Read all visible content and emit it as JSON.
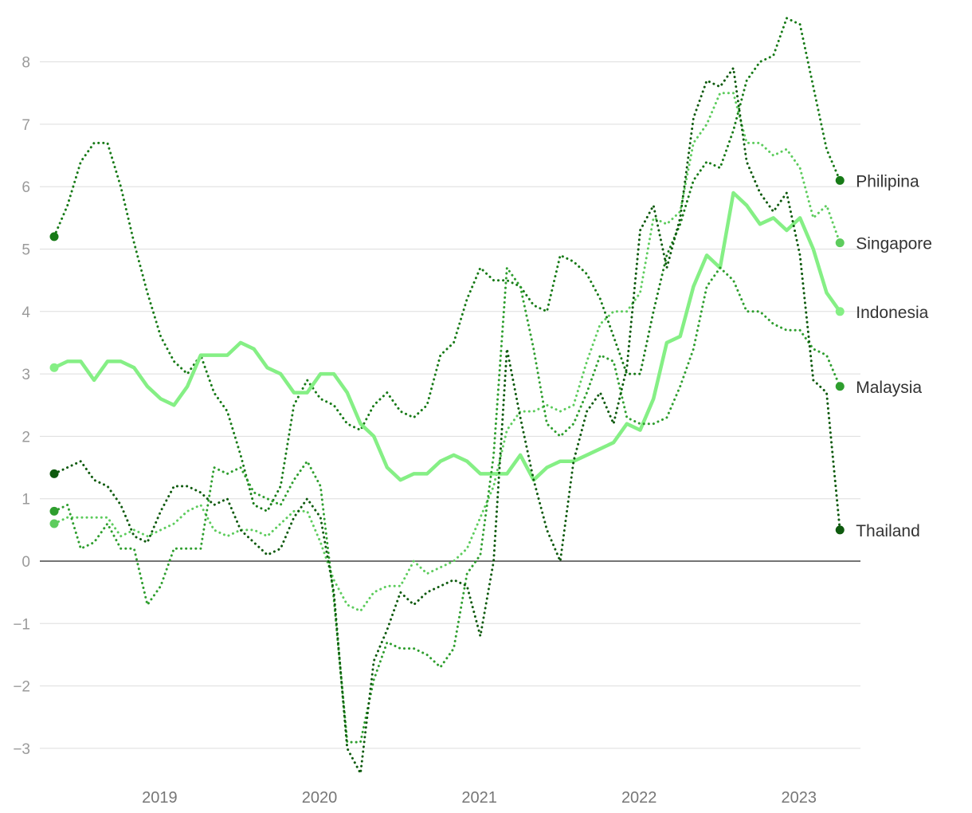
{
  "chart_data": {
    "type": "line",
    "title": "",
    "xlabel": "",
    "ylabel": "",
    "x_start": 2018.42,
    "x_step": 0.08333,
    "xlim": [
      2018.4,
      2023.4
    ],
    "ylim": [
      -3.5,
      8.8
    ],
    "x_ticks": [
      {
        "value": 2019,
        "label": "2019"
      },
      {
        "value": 2020,
        "label": "2020"
      },
      {
        "value": 2021,
        "label": "2021"
      },
      {
        "value": 2022,
        "label": "2022"
      },
      {
        "value": 2023,
        "label": "2023"
      }
    ],
    "y_ticks": [
      {
        "value": -3,
        "label": "−3"
      },
      {
        "value": -2,
        "label": "−2"
      },
      {
        "value": -1,
        "label": "−1"
      },
      {
        "value": 0,
        "label": "0"
      },
      {
        "value": 1,
        "label": "1"
      },
      {
        "value": 2,
        "label": "2"
      },
      {
        "value": 3,
        "label": "3"
      },
      {
        "value": 4,
        "label": "4"
      },
      {
        "value": 5,
        "label": "5"
      },
      {
        "value": 6,
        "label": "6"
      },
      {
        "value": 7,
        "label": "7"
      },
      {
        "value": 8,
        "label": "8"
      }
    ],
    "grid": true,
    "series": [
      {
        "name": "Philipina",
        "color": "#177a17",
        "style": "dotted",
        "values": [
          5.2,
          5.7,
          6.4,
          6.7,
          6.7,
          6.0,
          5.1,
          4.3,
          3.6,
          3.2,
          3.0,
          3.3,
          2.7,
          2.4,
          1.7,
          0.9,
          0.8,
          1.2,
          2.5,
          2.9,
          2.6,
          2.5,
          2.2,
          2.1,
          2.5,
          2.7,
          2.4,
          2.3,
          2.5,
          3.3,
          3.5,
          4.2,
          4.7,
          4.5,
          4.5,
          4.4,
          4.1,
          4.0,
          4.9,
          4.8,
          4.6,
          4.2,
          3.6,
          3.0,
          3.0,
          4.0,
          4.9,
          5.4,
          6.1,
          6.4,
          6.3,
          6.9,
          7.7,
          8.0,
          8.1,
          8.7,
          8.6,
          7.6,
          6.6,
          6.1
        ]
      },
      {
        "name": "Singapore",
        "color": "#5dcc5d",
        "style": "dotted",
        "values": [
          0.6,
          0.7,
          0.7,
          0.7,
          0.7,
          0.4,
          0.5,
          0.4,
          0.5,
          0.6,
          0.8,
          0.9,
          0.5,
          0.4,
          0.5,
          0.5,
          0.4,
          0.6,
          0.8,
          0.8,
          0.3,
          -0.3,
          -0.7,
          -0.8,
          -0.5,
          -0.4,
          -0.4,
          0.0,
          -0.2,
          -0.1,
          0.0,
          0.2,
          0.7,
          1.2,
          2.1,
          2.4,
          2.4,
          2.5,
          2.4,
          2.5,
          3.2,
          3.8,
          4.0,
          4.0,
          4.3,
          5.5,
          5.4,
          5.6,
          6.7,
          7.0,
          7.5,
          7.5,
          6.7,
          6.7,
          6.5,
          6.6,
          6.3,
          5.5,
          5.7,
          5.1
        ]
      },
      {
        "name": "Indonesia",
        "color": "#85ef85",
        "style": "solid",
        "values": [
          3.1,
          3.2,
          3.2,
          2.9,
          3.2,
          3.2,
          3.1,
          2.8,
          2.6,
          2.5,
          2.8,
          3.3,
          3.3,
          3.3,
          3.5,
          3.4,
          3.1,
          3.0,
          2.7,
          2.7,
          3.0,
          3.0,
          2.7,
          2.2,
          2.0,
          1.5,
          1.3,
          1.4,
          1.4,
          1.6,
          1.7,
          1.6,
          1.4,
          1.4,
          1.4,
          1.7,
          1.3,
          1.5,
          1.6,
          1.6,
          1.7,
          1.8,
          1.9,
          2.2,
          2.1,
          2.6,
          3.5,
          3.6,
          4.4,
          4.9,
          4.7,
          5.9,
          5.7,
          5.4,
          5.5,
          5.3,
          5.5,
          5.0,
          4.3,
          4.0
        ]
      },
      {
        "name": "Malaysia",
        "color": "#2e9e2e",
        "style": "dotted",
        "values": [
          0.8,
          0.9,
          0.2,
          0.3,
          0.6,
          0.2,
          0.2,
          -0.7,
          -0.4,
          0.2,
          0.2,
          0.2,
          1.5,
          1.4,
          1.5,
          1.1,
          1.0,
          0.9,
          1.3,
          1.6,
          1.2,
          -0.6,
          -2.9,
          -2.9,
          -1.9,
          -1.3,
          -1.4,
          -1.4,
          -1.5,
          -1.7,
          -1.4,
          -0.2,
          0.1,
          1.7,
          4.7,
          4.4,
          3.4,
          2.2,
          2.0,
          2.2,
          2.7,
          3.3,
          3.2,
          2.3,
          2.2,
          2.2,
          2.3,
          2.8,
          3.4,
          4.4,
          4.7,
          4.5,
          4.0,
          4.0,
          3.8,
          3.7,
          3.7,
          3.4,
          3.3,
          2.8
        ]
      },
      {
        "name": "Thailand",
        "color": "#0e5a0e",
        "style": "dotted",
        "values": [
          1.4,
          1.5,
          1.6,
          1.3,
          1.2,
          0.9,
          0.4,
          0.3,
          0.8,
          1.2,
          1.2,
          1.1,
          0.9,
          1.0,
          0.5,
          0.3,
          0.1,
          0.2,
          0.7,
          1.0,
          0.7,
          -0.5,
          -3.0,
          -3.4,
          -1.6,
          -1.1,
          -0.5,
          -0.7,
          -0.5,
          -0.4,
          -0.3,
          -0.4,
          -1.2,
          0.0,
          3.4,
          2.3,
          1.3,
          0.5,
          0.0,
          1.6,
          2.4,
          2.7,
          2.2,
          3.1,
          5.3,
          5.7,
          4.7,
          5.5,
          7.1,
          7.7,
          7.6,
          7.9,
          6.4,
          5.9,
          5.6,
          5.9,
          4.9,
          2.9,
          2.7,
          0.5
        ]
      }
    ]
  }
}
